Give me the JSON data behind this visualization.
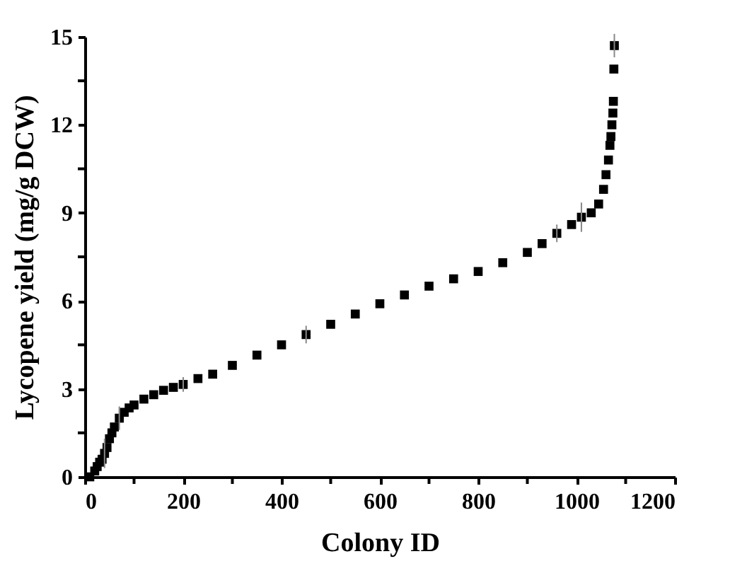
{
  "chart_data": {
    "type": "scatter",
    "xlabel": "Colony ID",
    "ylabel": "Lycopene yield (mg/g DCW)",
    "xlim": [
      0,
      1200
    ],
    "ylim": [
      0,
      15
    ],
    "xticks": [
      0,
      {
        "value": 100,
        "label": null
      },
      200,
      {
        "value": 300,
        "label": null
      },
      400,
      {
        "value": 500,
        "label": null
      },
      600,
      {
        "value": 700,
        "label": null
      },
      800,
      {
        "value": 900,
        "label": null
      },
      1000,
      {
        "value": 1100,
        "label": null
      },
      1200
    ],
    "yticks": [
      0,
      {
        "value": 1.5,
        "label": null
      },
      3,
      {
        "value": 4.5,
        "label": null
      },
      6,
      {
        "value": 7.5,
        "label": null
      },
      9,
      {
        "value": 10.5,
        "label": null
      },
      12,
      {
        "value": 13.5,
        "label": null
      },
      15
    ],
    "grid": false,
    "marker": "square",
    "x": [
      10,
      20,
      25,
      30,
      35,
      40,
      45,
      50,
      55,
      60,
      70,
      80,
      90,
      100,
      120,
      140,
      160,
      180,
      200,
      230,
      260,
      300,
      350,
      400,
      450,
      500,
      550,
      600,
      650,
      700,
      750,
      800,
      850,
      900,
      930,
      960,
      990,
      1010,
      1030,
      1045,
      1055,
      1060,
      1065,
      1068,
      1070,
      1072,
      1074,
      1075,
      1076,
      1077
    ],
    "series": [
      {
        "color": "#000000",
        "values": [
          0,
          0.2,
          0.35,
          0.5,
          0.6,
          0.8,
          1.0,
          1.3,
          1.5,
          1.7,
          2.0,
          2.2,
          2.35,
          2.45,
          2.65,
          2.8,
          2.95,
          3.05,
          3.15,
          3.35,
          3.5,
          3.8,
          4.15,
          4.5,
          4.85,
          5.2,
          5.55,
          5.9,
          6.2,
          6.5,
          6.75,
          7.0,
          7.3,
          7.65,
          7.95,
          8.3,
          8.6,
          8.85,
          9.0,
          9.3,
          9.8,
          10.3,
          10.8,
          11.3,
          11.6,
          12.0,
          12.4,
          12.8,
          13.9,
          14.7
        ],
        "errors": [
          null,
          null,
          null,
          null,
          null,
          0.5,
          null,
          null,
          null,
          null,
          0.4,
          null,
          null,
          null,
          null,
          null,
          null,
          null,
          0.25,
          null,
          null,
          null,
          null,
          null,
          0.3,
          null,
          null,
          null,
          null,
          null,
          null,
          null,
          null,
          null,
          null,
          0.3,
          null,
          0.5,
          null,
          null,
          null,
          null,
          null,
          null,
          null,
          null,
          null,
          null,
          null,
          0.4
        ]
      }
    ]
  }
}
